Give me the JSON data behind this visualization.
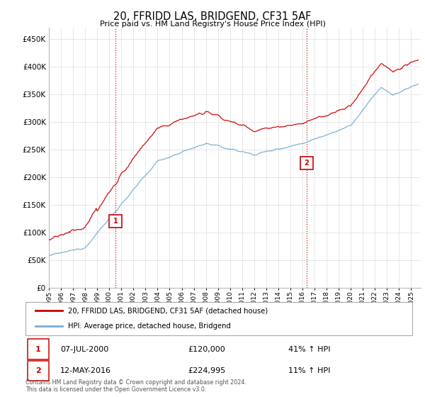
{
  "title": "20, FFRIDD LAS, BRIDGEND, CF31 5AF",
  "subtitle": "Price paid vs. HM Land Registry's House Price Index (HPI)",
  "ytick_values": [
    0,
    50000,
    100000,
    150000,
    200000,
    250000,
    300000,
    350000,
    400000,
    450000
  ],
  "ylim": [
    0,
    470000
  ],
  "xlim_start": 1995.0,
  "xlim_end": 2025.8,
  "sale1_x": 2000.52,
  "sale1_y": 120000,
  "sale1_label": "1",
  "sale2_x": 2016.36,
  "sale2_y": 224995,
  "sale2_label": "2",
  "vline1_x": 2000.52,
  "vline2_x": 2016.36,
  "legend_line1_label": "20, FFRIDD LAS, BRIDGEND, CF31 5AF (detached house)",
  "legend_line2_label": "HPI: Average price, detached house, Bridgend",
  "annotation1_num": "1",
  "annotation1_date": "07-JUL-2000",
  "annotation1_price": "£120,000",
  "annotation1_hpi": "41% ↑ HPI",
  "annotation2_num": "2",
  "annotation2_date": "12-MAY-2016",
  "annotation2_price": "£224,995",
  "annotation2_hpi": "11% ↑ HPI",
  "footer": "Contains HM Land Registry data © Crown copyright and database right 2024.\nThis data is licensed under the Open Government Licence v3.0.",
  "red_color": "#cc0000",
  "blue_color": "#7aadd4",
  "vline_color": "#cc0000",
  "background_color": "#ffffff",
  "grid_color": "#dddddd"
}
